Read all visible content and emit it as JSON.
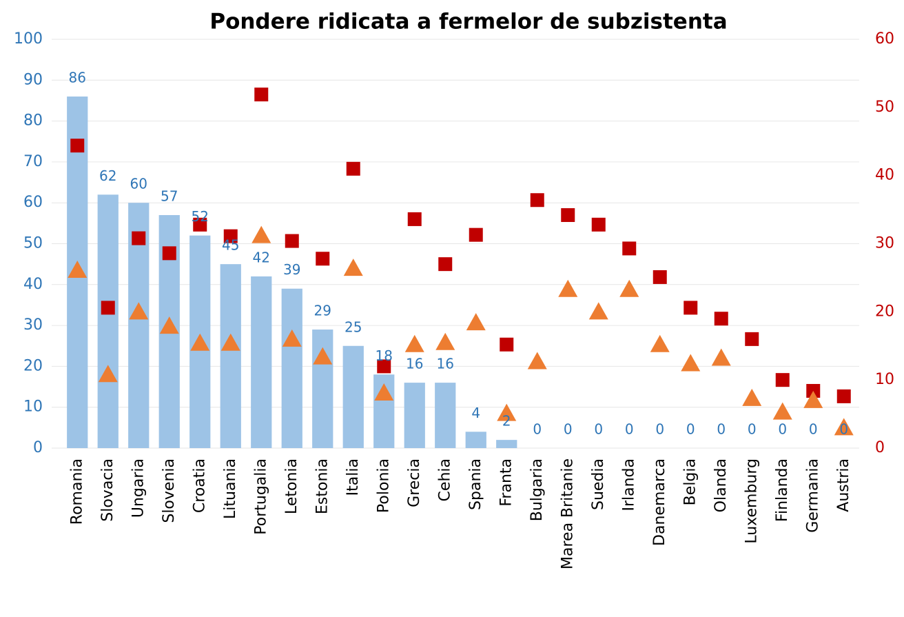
{
  "chart_data": {
    "type": "bar",
    "title": "Pondere ridicata a fermelor de subzistenta",
    "categories": [
      "Romania",
      "Slovacia",
      "Ungaria",
      "Slovenia",
      "Croatia",
      "Lituania",
      "Portugalia",
      "Letonia",
      "Estonia",
      "Italia",
      "Polonia",
      "Grecia",
      "Cehia",
      "Spania",
      "Franta",
      "Bulgaria",
      "Marea Britanie",
      "Suedia",
      "Irlanda",
      "Danemarca",
      "Belgia",
      "Olanda",
      "Luxemburg",
      "Finlanda",
      "Germania",
      "Austria"
    ],
    "series": [
      {
        "type": "bar",
        "color": "#9dc3e6",
        "label_color": "#2e75b6",
        "values": [
          86,
          62,
          60,
          57,
          52,
          45,
          42,
          39,
          29,
          25,
          18,
          16,
          16,
          4,
          2,
          0,
          0,
          0,
          0,
          0,
          0,
          0,
          0,
          0,
          0,
          0
        ]
      },
      {
        "type": "scatter",
        "marker": "square",
        "axis": "y2",
        "color": "#c00000",
        "values": [
          44.4,
          20.6,
          30.8,
          28.6,
          32.8,
          31.1,
          51.9,
          30.4,
          27.8,
          41.0,
          12.0,
          33.6,
          27.0,
          31.3,
          15.2,
          36.4,
          34.2,
          32.8,
          29.3,
          25.1,
          20.6,
          19.0,
          16.0,
          10.0,
          8.4,
          7.6
        ]
      },
      {
        "type": "scatter",
        "marker": "triangle",
        "axis": "y2",
        "color": "#ed7d31",
        "values": [
          26.1,
          10.8,
          20.0,
          17.9,
          15.4,
          15.4,
          31.2,
          16.0,
          13.4,
          26.4,
          8.1,
          15.2,
          15.5,
          18.4,
          5.1,
          12.7,
          23.3,
          20.0,
          23.3,
          15.2,
          12.4,
          13.2,
          7.3,
          5.3,
          7.0,
          3.0
        ]
      }
    ],
    "ylim": [
      0,
      100
    ],
    "yticks": [
      0,
      10,
      20,
      30,
      40,
      50,
      60,
      70,
      80,
      90,
      100
    ],
    "ytick_color": "#2e75b6",
    "y2lim": [
      0,
      60
    ],
    "y2ticks": [
      0,
      10,
      20,
      30,
      40,
      50,
      60
    ],
    "y2tick_color": "#c00000",
    "grid": true
  }
}
